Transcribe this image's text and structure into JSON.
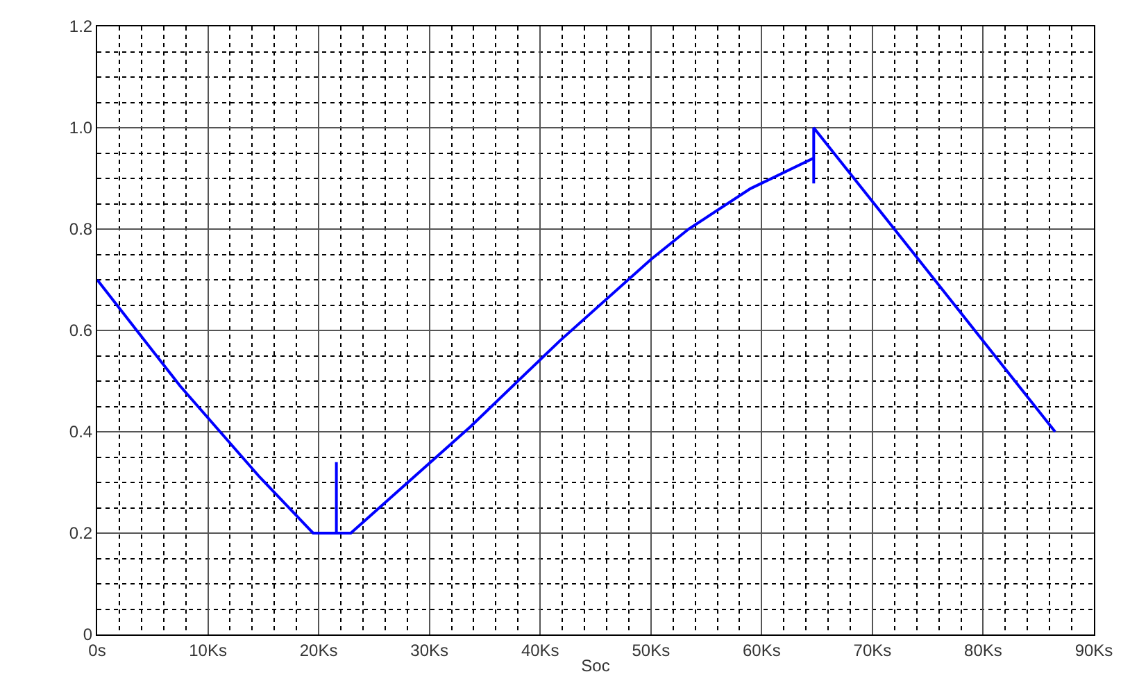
{
  "chart_data": {
    "type": "line",
    "xlabel": "Soc",
    "x": [
      0,
      7.5,
      14.7,
      19.5,
      21.6,
      21.6,
      21.6,
      22.9,
      33.7,
      41.8,
      50.0,
      53.4,
      59.0,
      64.7,
      64.7,
      64.7,
      73.8,
      86.5
    ],
    "series": [
      {
        "color": "#0000ff",
        "values": [
          0.7,
          0.49,
          0.31,
          0.2,
          0.2,
          0.34,
          0.2,
          0.2,
          0.41,
          0.58,
          0.74,
          0.8,
          0.88,
          0.94,
          0.89,
          1.0,
          0.75,
          0.4
        ]
      }
    ],
    "xlim": [
      0,
      90
    ],
    "xticks": [
      {
        "value": 0,
        "label": "0s"
      },
      {
        "value": 10,
        "label": "10Ks"
      },
      {
        "value": 20,
        "label": "20Ks"
      },
      {
        "value": 30,
        "label": "30Ks"
      },
      {
        "value": 40,
        "label": "40Ks"
      },
      {
        "value": 50,
        "label": "50Ks"
      },
      {
        "value": 60,
        "label": "60Ks"
      },
      {
        "value": 70,
        "label": "70Ks"
      },
      {
        "value": 80,
        "label": "80Ks"
      },
      {
        "value": 90,
        "label": "90Ks"
      }
    ],
    "ylim": [
      0,
      1.2
    ],
    "yticks": [
      0,
      0.2,
      0.4,
      0.6,
      0.8,
      {
        "value": 1.0,
        "label": "1.0"
      },
      1.2
    ],
    "grid": true,
    "line_style": "solid",
    "marker": "none"
  }
}
